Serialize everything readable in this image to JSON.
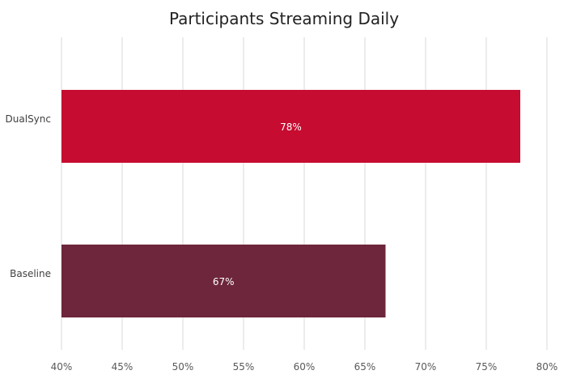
{
  "chart_data": {
    "type": "bar",
    "orientation": "horizontal",
    "title": "Participants Streaming Daily",
    "categories": [
      "DualSync",
      "Baseline"
    ],
    "values": [
      77.8,
      66.7
    ],
    "data_labels": [
      "78%",
      "67%"
    ],
    "bar_colors": [
      "#c60c30",
      "#6d263b"
    ],
    "xlim": [
      40,
      80
    ],
    "x_ticks": [
      40,
      45,
      50,
      55,
      60,
      65,
      70,
      75,
      80
    ],
    "x_tick_labels": [
      "40%",
      "45%",
      "50%",
      "55%",
      "60%",
      "65%",
      "70%",
      "75%",
      "80%"
    ],
    "grid": true,
    "legend": "none"
  }
}
